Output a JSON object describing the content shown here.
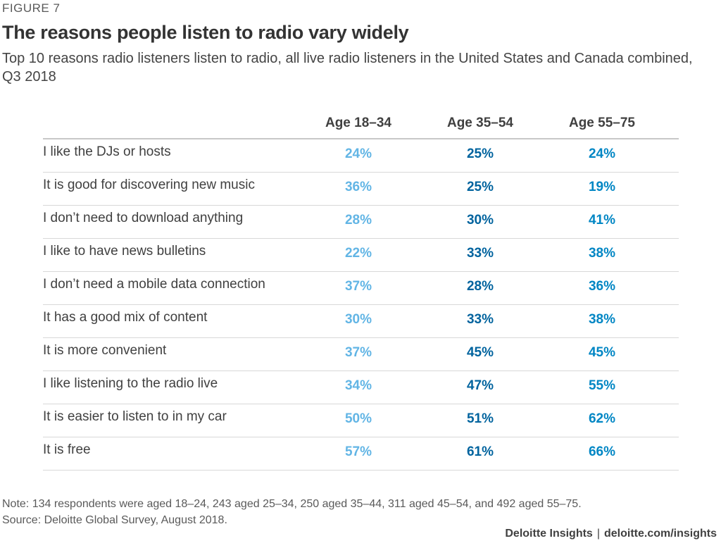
{
  "figure_label": "FIGURE 7",
  "colors": {
    "age_18_34": "#62b5e5",
    "age_35_54": "#00639e",
    "age_55_75": "#0086c4"
  },
  "chart_data": {
    "type": "table",
    "title": "The reasons people listen to radio vary widely",
    "subtitle": "Top 10 reasons radio listeners listen to radio, all live radio listeners in the United States and Canada combined, Q3 2018",
    "columns": [
      "Age 18–34",
      "Age 35–54",
      "Age 55–75"
    ],
    "rows": [
      {
        "label": "I like the DJs or hosts",
        "values": [
          "24%",
          "25%",
          "24%"
        ]
      },
      {
        "label": "It is good for discovering new music",
        "values": [
          "36%",
          "25%",
          "19%"
        ]
      },
      {
        "label": "I don’t need to download anything",
        "values": [
          "28%",
          "30%",
          "41%"
        ]
      },
      {
        "label": "I like to have news bulletins",
        "values": [
          "22%",
          "33%",
          "38%"
        ]
      },
      {
        "label": "I don’t need a mobile data connection",
        "values": [
          "37%",
          "28%",
          "36%"
        ]
      },
      {
        "label": "It has a good mix of content",
        "values": [
          "30%",
          "33%",
          "38%"
        ]
      },
      {
        "label": "It is more convenient",
        "values": [
          "37%",
          "45%",
          "45%"
        ]
      },
      {
        "label": "I like listening to the radio live",
        "values": [
          "34%",
          "47%",
          "55%"
        ]
      },
      {
        "label": "It is easier to listen to in my car",
        "values": [
          "50%",
          "51%",
          "62%"
        ]
      },
      {
        "label": "It is free",
        "values": [
          "57%",
          "61%",
          "66%"
        ]
      }
    ]
  },
  "footer": {
    "note": "Note: 134 respondents were aged 18–24, 243 aged 25–34, 250 aged 35–44, 311 aged 45–54, and 492 aged 55–75.",
    "source": "Source: Deloitte Global Survey, August 2018.",
    "brand": "Deloitte Insights",
    "separator": "|",
    "url": "deloitte.com/insights"
  }
}
